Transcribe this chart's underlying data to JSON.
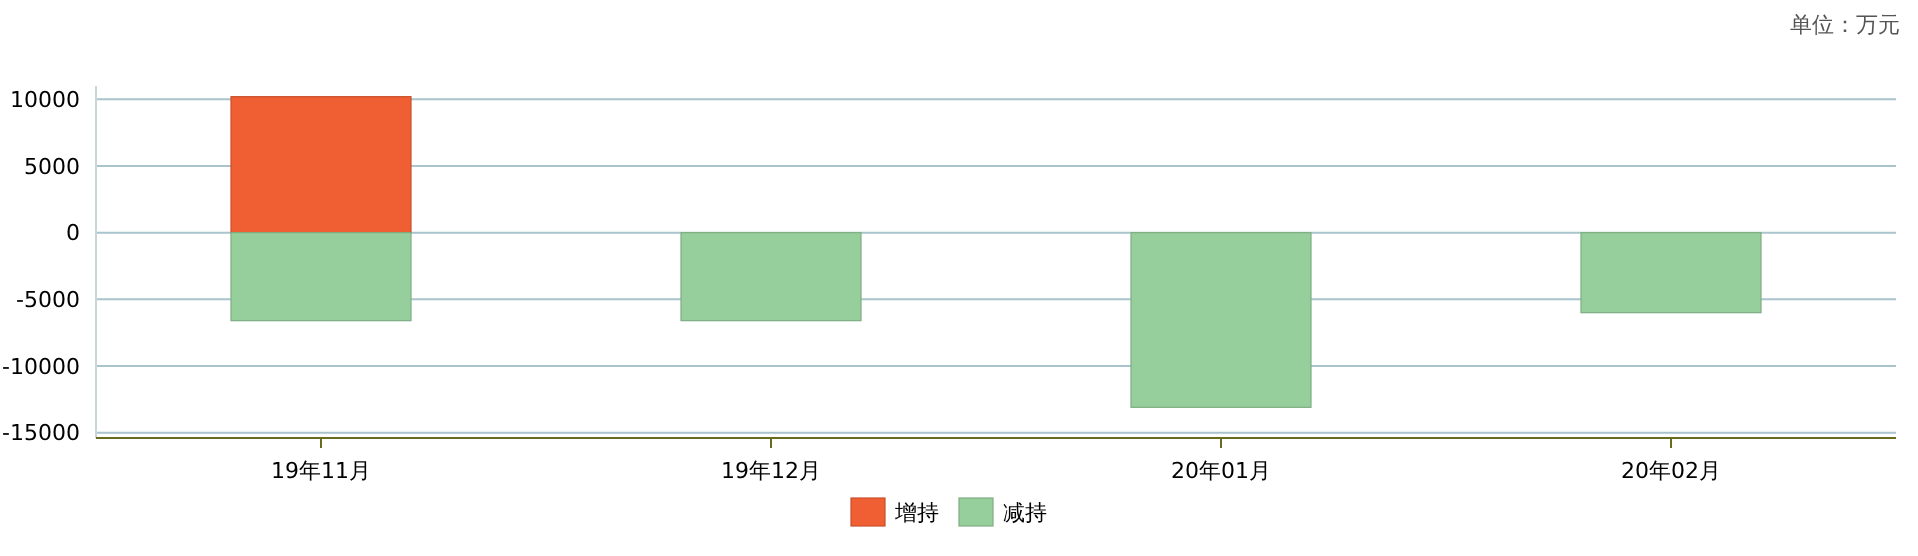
{
  "chart_data": {
    "type": "bar",
    "stacked": true,
    "categories": [
      "19年11月",
      "19年12月",
      "20年01月",
      "20年02月"
    ],
    "series": [
      {
        "name": "增持",
        "color": "#f05f34",
        "values": [
          10200,
          null,
          null,
          null
        ]
      },
      {
        "name": "减持",
        "color": "#96cf9b",
        "values": [
          -6600,
          -6600,
          -13100,
          -6000
        ]
      }
    ],
    "ylim": [
      -15400,
      11000
    ],
    "yticks": [
      -15000,
      -10000,
      -5000,
      0,
      5000,
      10000
    ],
    "grid": "y",
    "legend": "bottom",
    "annotations": [
      "单位：万元"
    ]
  }
}
